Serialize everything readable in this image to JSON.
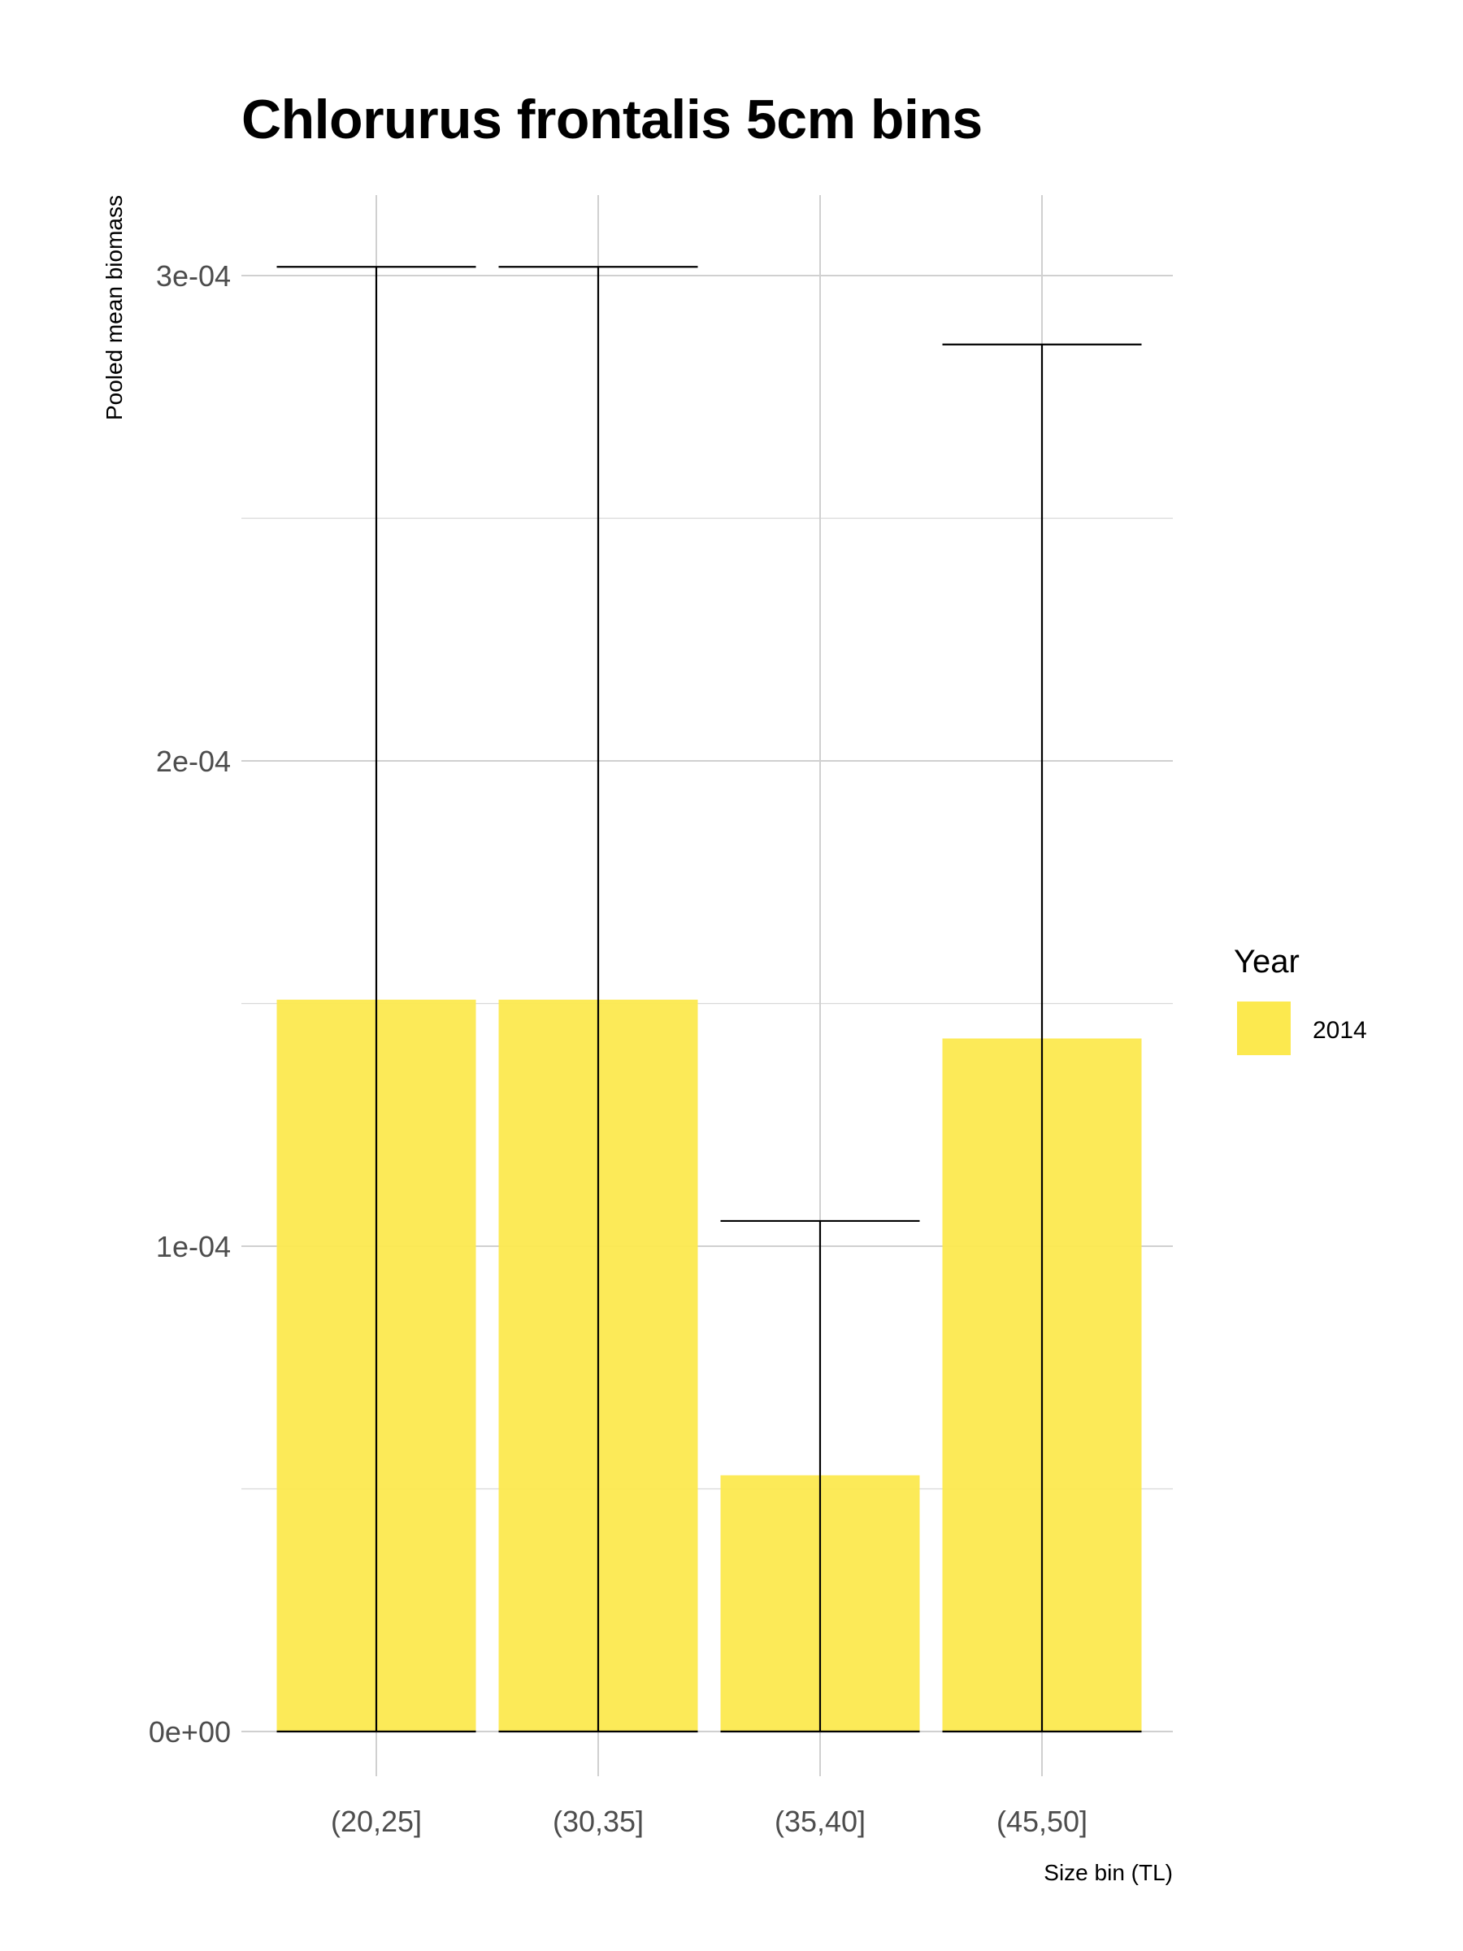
{
  "chart_data": {
    "type": "bar",
    "title": "Chlorurus frontalis 5cm bins",
    "xlabel": "Size bin (TL)",
    "ylabel": "Pooled mean biomass",
    "categories": [
      "(20,25]",
      "(30,35]",
      "(35,40]",
      "(45,50]"
    ],
    "series": [
      {
        "name": "2014",
        "color": "#fce94f",
        "values": [
          0.0001508,
          0.0001508,
          5.28e-05,
          0.0001428
        ],
        "error_low": [
          0,
          0,
          0,
          0
        ],
        "error_high": [
          0.0003018,
          0.0003018,
          0.0001052,
          0.0002858
        ]
      }
    ],
    "ylim": [
      0,
      0.00032
    ],
    "yticks": [
      0,
      0.0001,
      0.0002,
      0.0003
    ],
    "ytick_labels": [
      "0e+00",
      "1e-04",
      "2e-04",
      "3e-04"
    ],
    "legend": {
      "title": "Year",
      "position": "right"
    },
    "grid": true
  }
}
